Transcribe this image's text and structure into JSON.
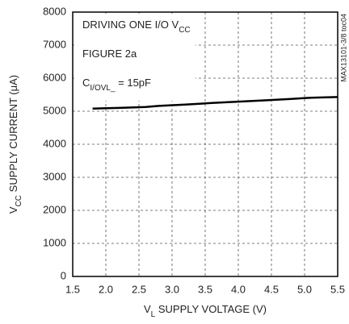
{
  "chart_data": {
    "type": "line",
    "annotations": [
      [
        "DRIVING ONE I/O V",
        "CC"
      ],
      [
        "FIGURE 2a"
      ],
      [
        "C",
        "I/OVL_",
        " = 15pF"
      ]
    ],
    "side_note": "MAX13101-3/8 toc04",
    "y_label": [
      "V",
      "CC",
      " SUPPLY CURRENT (μA)"
    ],
    "x_label": [
      "V",
      "L",
      " SUPPLY VOLTAGE (V)"
    ],
    "x": [
      1.8,
      2.2,
      2.6,
      2.8,
      3.2,
      3.6,
      4.0,
      4.4,
      4.8,
      5.1,
      5.5
    ],
    "series": [
      {
        "color": "#000000",
        "values": [
          5080,
          5100,
          5130,
          5160,
          5200,
          5250,
          5290,
          5330,
          5370,
          5410,
          5430
        ]
      }
    ],
    "xlim": [
      1.5,
      5.5
    ],
    "xticks": [
      1.5,
      {
        "value": 2,
        "label": "2.0"
      },
      2.5,
      {
        "value": 3,
        "label": "3.0"
      },
      3.5,
      {
        "value": 4,
        "label": "4.0"
      },
      4.5,
      {
        "value": 5,
        "label": "5.0"
      },
      5.5
    ],
    "ylim": [
      0,
      8000
    ],
    "yticks": [
      0,
      1000,
      2000,
      3000,
      4000,
      5000,
      6000,
      7000,
      8000
    ],
    "grid": true
  }
}
